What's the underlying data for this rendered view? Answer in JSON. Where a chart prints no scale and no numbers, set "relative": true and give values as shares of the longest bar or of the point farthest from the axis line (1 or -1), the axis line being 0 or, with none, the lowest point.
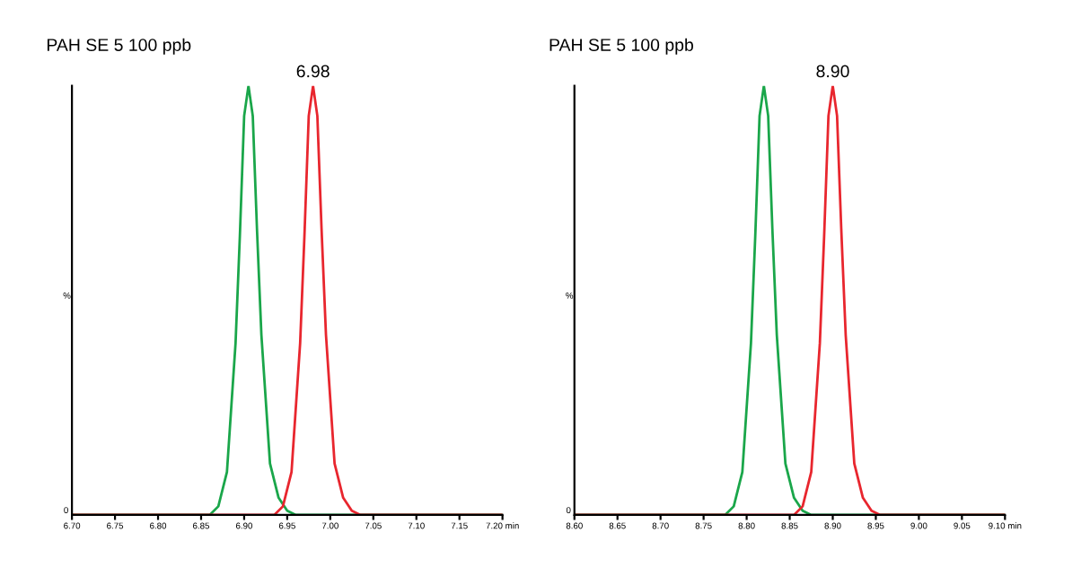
{
  "chart_data": [
    {
      "type": "line",
      "title": "PAH SE 5 100 ppb",
      "ylabel": "%",
      "relative": true,
      "legend": false,
      "grid": false,
      "marker": "none",
      "line_style": "solid",
      "xlim": [
        6.7,
        7.2
      ],
      "xticks": [
        {
          "value": 6.7,
          "label": "6.70"
        },
        6.75,
        {
          "value": 6.8,
          "label": "6.80"
        },
        6.85,
        {
          "value": 6.9,
          "label": "6.90"
        },
        6.95,
        {
          "value": 7.0,
          "label": "7.00"
        },
        7.05,
        {
          "value": 7.1,
          "label": "7.10"
        },
        7.15,
        {
          "value": 7.2,
          "label": "7.20 min"
        }
      ],
      "annotations": [
        "0",
        {
          "text": "6.98",
          "x": 6.98,
          "y": 1
        }
      ],
      "series": [
        {
          "color": "#1aa64a",
          "x": [
            6.7,
            6.86,
            6.87,
            6.88,
            6.89,
            6.895,
            6.9,
            6.905,
            6.91,
            6.915,
            6.92,
            6.93,
            6.94,
            6.95,
            6.96,
            7.2
          ],
          "values": [
            0,
            0,
            0.02,
            0.1,
            0.4,
            0.65,
            0.93,
            1,
            0.93,
            0.66,
            0.42,
            0.12,
            0.04,
            0.01,
            0,
            0
          ]
        },
        {
          "color": "#e8262e",
          "x": [
            6.7,
            6.935,
            6.945,
            6.955,
            6.965,
            6.97,
            6.975,
            6.98,
            6.985,
            6.99,
            6.995,
            7.005,
            7.015,
            7.025,
            7.035,
            7.2
          ],
          "values": [
            0,
            0,
            0.02,
            0.1,
            0.4,
            0.65,
            0.93,
            1,
            0.93,
            0.66,
            0.42,
            0.12,
            0.04,
            0.01,
            0,
            0
          ]
        }
      ]
    },
    {
      "type": "line",
      "title": "PAH SE 5 100 ppb",
      "ylabel": "%",
      "relative": true,
      "legend": false,
      "grid": false,
      "marker": "none",
      "line_style": "solid",
      "xlim": [
        8.6,
        9.1
      ],
      "xticks": [
        {
          "value": 8.6,
          "label": "8.60"
        },
        8.65,
        {
          "value": 8.7,
          "label": "8.70"
        },
        8.75,
        {
          "value": 8.8,
          "label": "8.80"
        },
        8.85,
        {
          "value": 8.9,
          "label": "8.90"
        },
        8.95,
        {
          "value": 9.0,
          "label": "9.00"
        },
        9.05,
        {
          "value": 9.1,
          "label": "9.10 min"
        }
      ],
      "annotations": [
        "0",
        {
          "text": "8.90",
          "x": 8.9,
          "y": 1
        }
      ],
      "series": [
        {
          "color": "#1aa64a",
          "x": [
            8.6,
            8.775,
            8.785,
            8.795,
            8.805,
            8.81,
            8.815,
            8.82,
            8.825,
            8.83,
            8.835,
            8.845,
            8.855,
            8.865,
            8.875,
            9.1
          ],
          "values": [
            0,
            0,
            0.02,
            0.1,
            0.4,
            0.65,
            0.93,
            1,
            0.93,
            0.66,
            0.42,
            0.12,
            0.04,
            0.01,
            0,
            0
          ]
        },
        {
          "color": "#e8262e",
          "x": [
            8.6,
            8.855,
            8.865,
            8.875,
            8.885,
            8.89,
            8.895,
            8.9,
            8.905,
            8.91,
            8.915,
            8.925,
            8.935,
            8.945,
            8.955,
            9.1
          ],
          "values": [
            0,
            0,
            0.02,
            0.1,
            0.4,
            0.65,
            0.93,
            1,
            0.93,
            0.66,
            0.42,
            0.12,
            0.04,
            0.01,
            0,
            0
          ]
        }
      ]
    }
  ]
}
